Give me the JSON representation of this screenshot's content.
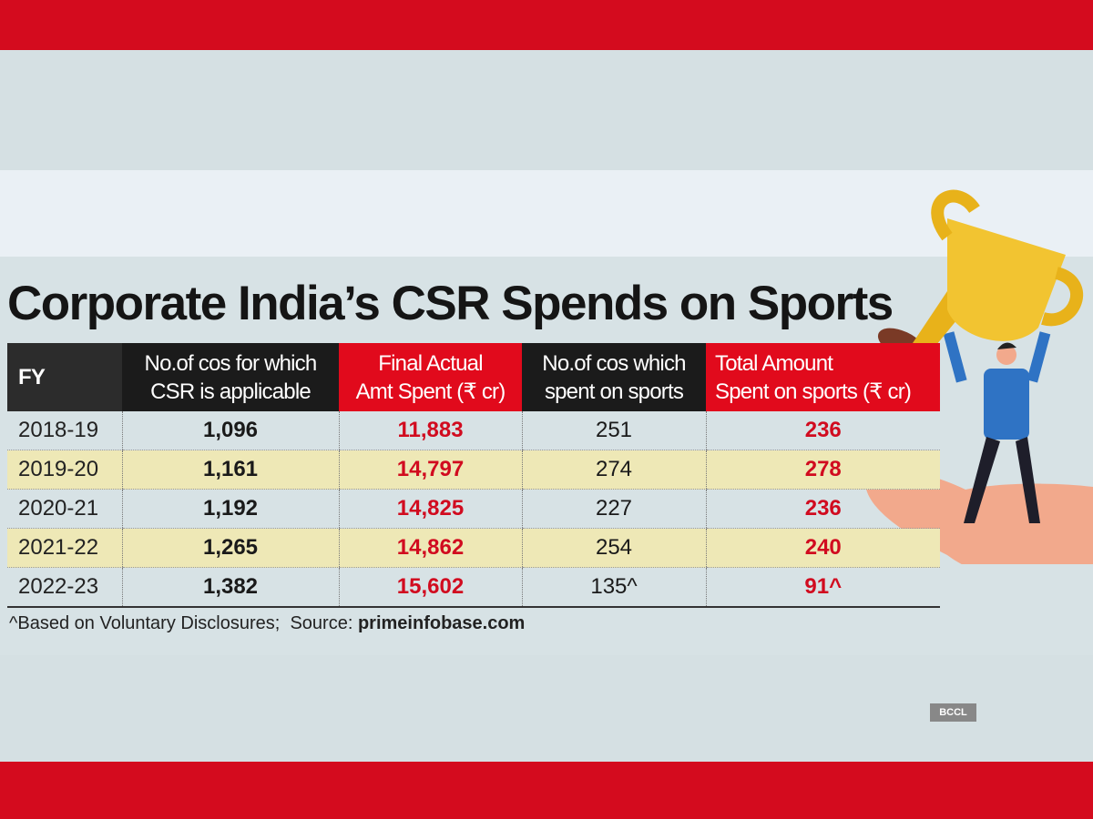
{
  "title": "Corporate India’s CSR Spends on Sports",
  "footnote": {
    "note": "^Based on Voluntary Disclosures;",
    "source_label": "Source:",
    "source": "primeinfobase.com"
  },
  "watermark": "BCCL",
  "colors": {
    "brand_red": "#d40b1e",
    "header_red": "#e10a1c",
    "value_red": "#d10b1f",
    "alt_row": "#eee8b6"
  },
  "chart_data": {
    "type": "table",
    "title": "Corporate India’s CSR Spends on Sports",
    "columns": [
      "FY",
      "No.of cos for which CSR is applicable",
      "Final Actual Amt Spent (₹ cr)",
      "No.of cos which spent on sports",
      "Total Amount Spent on sports (₹ cr)"
    ],
    "columns_lines": [
      [
        "FY"
      ],
      [
        "No.of cos for which",
        "CSR is applicable"
      ],
      [
        "Final Actual",
        "Amt Spent (₹ cr)"
      ],
      [
        "No.of cos which",
        "spent on sports"
      ],
      [
        "Total Amount",
        "Spent on sports (₹ cr)"
      ]
    ],
    "rows": [
      [
        "2018-19",
        "1,096",
        "11,883",
        "251",
        "236"
      ],
      [
        "2019-20",
        "1,161",
        "14,797",
        "274",
        "278"
      ],
      [
        "2020-21",
        "1,192",
        "14,825",
        "227",
        "236"
      ],
      [
        "2021-22",
        "1,265",
        "14,862",
        "254",
        "240"
      ],
      [
        "2022-23",
        "1,382",
        "15,602",
        "135^",
        "91^"
      ]
    ]
  }
}
